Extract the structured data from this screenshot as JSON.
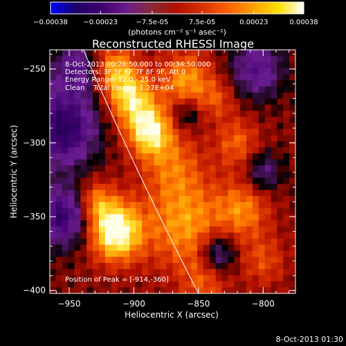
{
  "chart_data": {
    "type": "heatmap",
    "title": "Reconstructed RHESSI Image",
    "colorbar": {
      "ticks": [
        "-0.00038",
        "-0.00023",
        "-7.5e-05",
        "7.5e-05",
        "0.00023",
        "0.00038"
      ],
      "range": [
        -0.00038,
        0.00038
      ],
      "unit_label": "(photons cm⁻² s⁻¹ asec⁻²)",
      "colormap": [
        "#0000ff",
        "#1a0066",
        "#400070",
        "#6a1c8a",
        "#8a2a3a",
        "#b01000",
        "#d83000",
        "#ff6000",
        "#ffa000",
        "#ffe000",
        "#ffffff"
      ]
    },
    "xlabel": "Heliocentric X (arcsec)",
    "ylabel": "Heliocentric Y (arcsec)",
    "xlim": [
      -965,
      -775
    ],
    "ylim": [
      -402,
      -237
    ],
    "xticks": [
      -950,
      -900,
      -850,
      -800
    ],
    "yticks": [
      -250,
      -300,
      -350,
      -400
    ],
    "xtick_labels": [
      "−950",
      "−900",
      "−850",
      "−800"
    ],
    "ytick_labels": [
      "−250",
      "−300",
      "−350",
      "−400"
    ],
    "annotations": [
      "8-Oct-2013 00:28:50.000 to 00:34:50.000",
      "Detectors: 3F 5F 6F 7F 8F 9F, Att 0",
      "Energy Range: 12.0 - 25.0 keV",
      "Clean    Total counts: 1.27E+04"
    ],
    "peak_label": "Position of Peak = [-914,-360]",
    "peak": [
      -914,
      -360
    ],
    "limb_x_at_ylim": [
      -939,
      -850
    ],
    "colors": {
      "background": "#000000",
      "axes": "#ffffff",
      "text": "#ffffff",
      "limb": "#ffffff"
    },
    "footer_timestamp": "8-Oct-2013 01:30"
  }
}
